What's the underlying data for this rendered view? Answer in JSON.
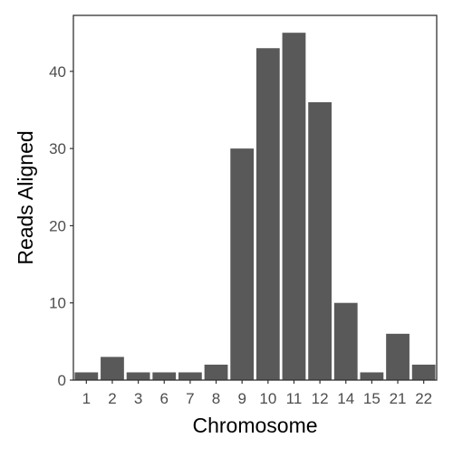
{
  "chart_data": {
    "type": "bar",
    "title": "",
    "xlabel": "Chromosome",
    "ylabel": "Reads Aligned",
    "categories": [
      "1",
      "2",
      "3",
      "6",
      "7",
      "8",
      "9",
      "10",
      "11",
      "12",
      "14",
      "15",
      "21",
      "22"
    ],
    "values": [
      1,
      3,
      1,
      1,
      1,
      2,
      30,
      43,
      45,
      36,
      10,
      1,
      6,
      2
    ],
    "ylim": [
      0,
      47.25
    ],
    "yticks": [
      0,
      10,
      20,
      30,
      40
    ],
    "grid": false,
    "legend": "none",
    "colors": {
      "bar": "#595959",
      "panel_border": "#333333",
      "tick_label": "#4d4d4d",
      "axis_title": "#000000"
    }
  }
}
